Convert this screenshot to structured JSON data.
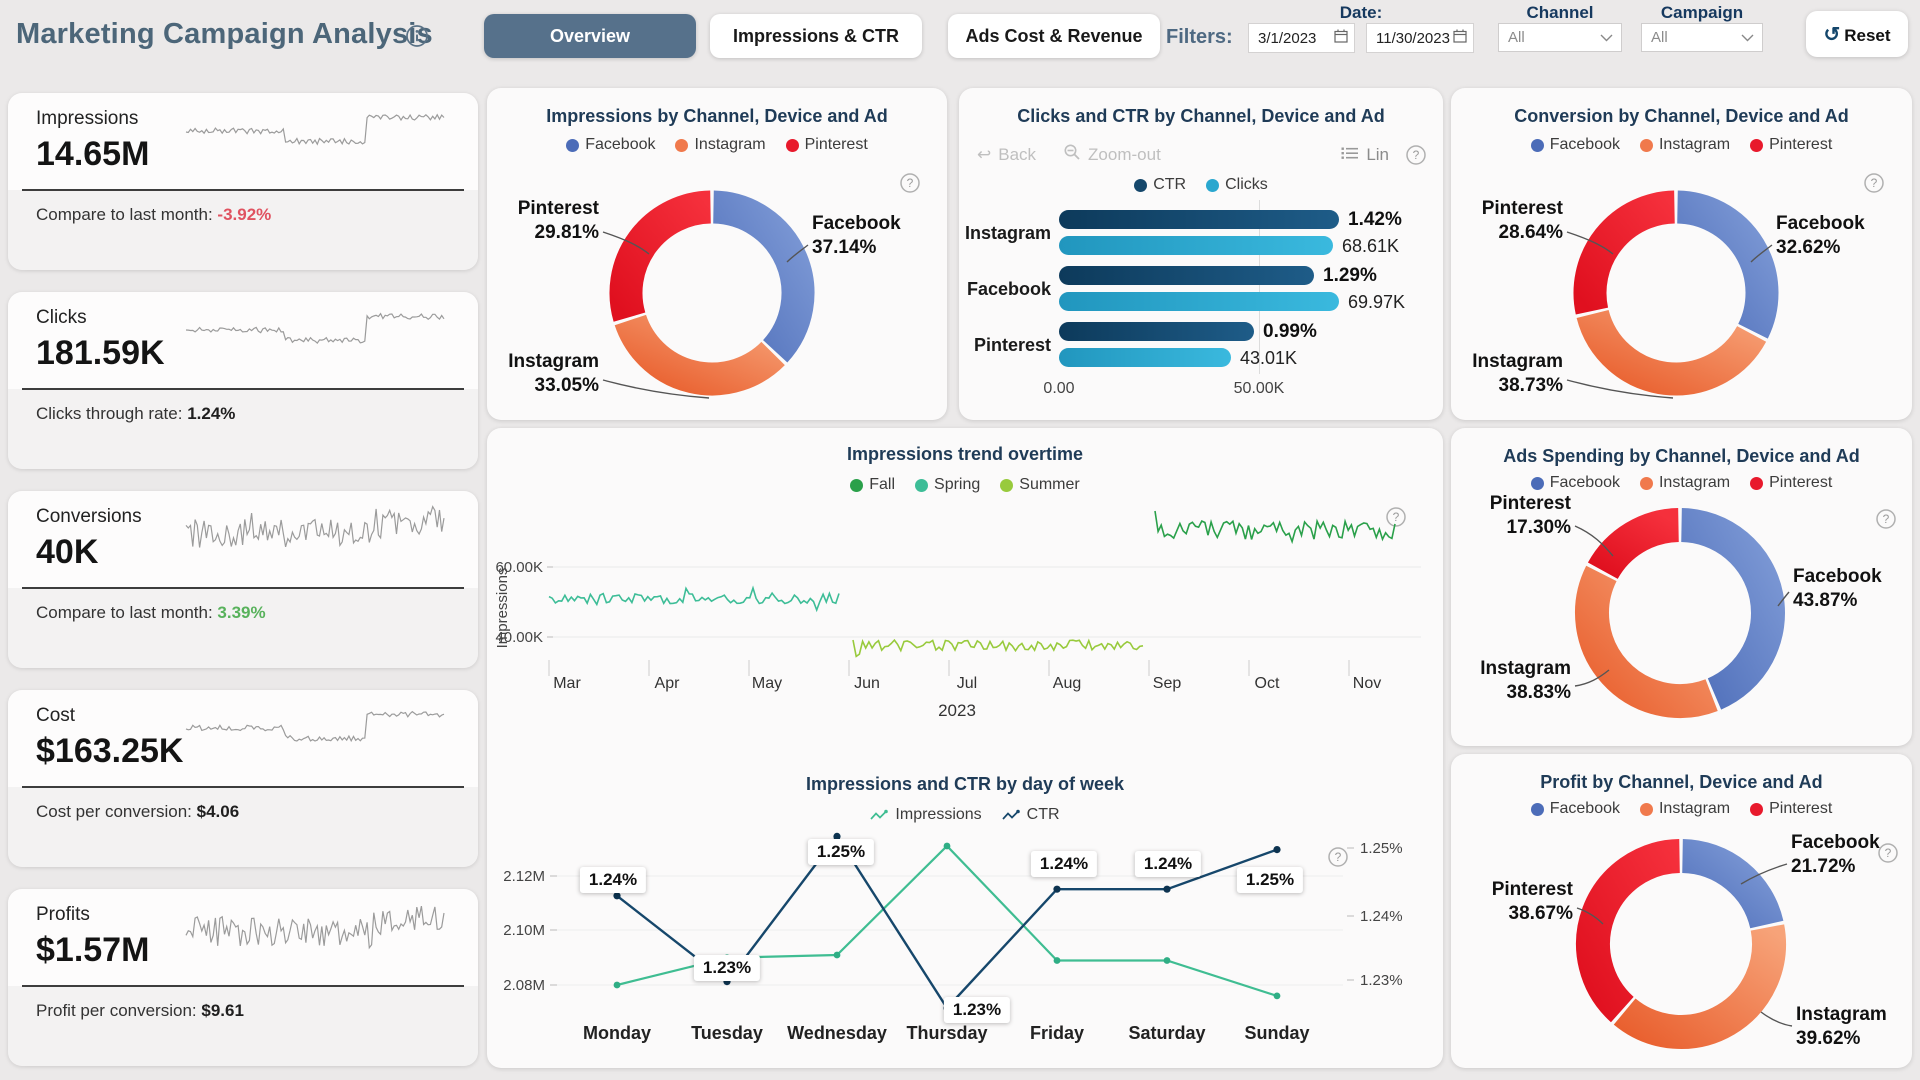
{
  "header": {
    "title": "Marketing Campaign Analysis",
    "tabs": [
      {
        "label": "Overview",
        "active": true
      },
      {
        "label": "Impressions & CTR",
        "active": false
      },
      {
        "label": "Ads Cost & Revenue",
        "active": false
      }
    ],
    "filters_label": "Filters:",
    "date": {
      "label": "Date:",
      "from": "3/1/2023",
      "to": "11/30/2023"
    },
    "channel": {
      "label": "Channel",
      "value": "All"
    },
    "campaign": {
      "label": "Campaign",
      "value": "All"
    },
    "reset_label": "Reset"
  },
  "colors": {
    "page_bg": "#ebe9e9",
    "card_bg": "#fbfafa",
    "tab_active_bg": "#56718b",
    "title_slate": "#4c6679",
    "label_navy": "#16395f",
    "positive": "#58b25c",
    "negative": "#e05260",
    "facebook": "#4c6cb8",
    "instagram": "#f0794c",
    "pinterest": "#e8192c",
    "ctr_navy": "#15476b",
    "clicks_cyan": "#2aa7cf"
  },
  "kpis": [
    {
      "title": "Impressions",
      "value": "14.65M",
      "subtitle": "Compare to last month: ",
      "sub_value": "-3.92%",
      "sub_color": "#e05260",
      "spark": {
        "type": "step",
        "seed": 5
      }
    },
    {
      "title": "Clicks",
      "value": "181.59K",
      "subtitle": "Clicks through rate: ",
      "sub_value": "1.24%",
      "sub_color": "#1f1f1f",
      "spark": {
        "type": "step",
        "seed": 11
      }
    },
    {
      "title": "Conversions",
      "value": "40K",
      "subtitle": "Compare to last month: ",
      "sub_value": "3.39%",
      "sub_color": "#58b25c",
      "spark": {
        "type": "noise",
        "seed": 23
      }
    },
    {
      "title": "Cost",
      "value": "$163.25K",
      "subtitle": "Cost per conversion: ",
      "sub_value": "$4.06",
      "sub_color": "#1f1f1f",
      "spark": {
        "type": "step",
        "seed": 31
      }
    },
    {
      "title": "Profits",
      "value": "$1.57M",
      "subtitle": "Profit per conversion: ",
      "sub_value": "$9.61",
      "sub_color": "#1f1f1f",
      "spark": {
        "type": "noise",
        "seed": 47
      }
    }
  ],
  "chart_data": [
    {
      "id": "impressions_by_channel",
      "type": "pie",
      "title": "Impressions by Channel, Device and Ad",
      "segments": [
        {
          "label": "Facebook",
          "value": 37.14,
          "display": "37.14%",
          "color": "#4c6cb8",
          "color2": "#7e9ad6"
        },
        {
          "label": "Instagram",
          "value": 33.05,
          "display": "33.05%",
          "color": "#e9602f",
          "color2": "#f7a379"
        },
        {
          "label": "Pinterest",
          "value": 29.81,
          "display": "29.81%",
          "color": "#e0101f",
          "color2": "#f5303c"
        }
      ]
    },
    {
      "id": "clicks_ctr_by_channel",
      "type": "bar",
      "title": "Clicks and CTR by Channel, Device and Ad",
      "toolbar": {
        "back": "Back",
        "zoom_out": "Zoom-out",
        "lin": "Lin"
      },
      "categories": [
        "Instagram",
        "Facebook",
        "Pinterest"
      ],
      "series": [
        {
          "name": "CTR",
          "color": "#15476b",
          "values": [
            1.42,
            1.29,
            0.99
          ],
          "labels": [
            "1.42%",
            "1.29%",
            "0.99%"
          ],
          "axis_max": 1.52
        },
        {
          "name": "Clicks",
          "color": "#2aa7cf",
          "values": [
            68.61,
            69.97,
            43.01
          ],
          "labels": [
            "68.61K",
            "69.97K",
            "43.01K"
          ],
          "axis_max": 75
        }
      ],
      "x_ticks": [
        "0.00",
        "50.00K"
      ]
    },
    {
      "id": "conversion_by_channel",
      "type": "pie",
      "title": "Conversion by Channel, Device and Ad",
      "segments": [
        {
          "label": "Facebook",
          "value": 32.62,
          "display": "32.62%",
          "color": "#4c6cb8",
          "color2": "#7e9ad6"
        },
        {
          "label": "Instagram",
          "value": 38.73,
          "display": "38.73%",
          "color": "#e9602f",
          "color2": "#f7a379"
        },
        {
          "label": "Pinterest",
          "value": 28.64,
          "display": "28.64%",
          "color": "#e0101f",
          "color2": "#f5303c"
        }
      ]
    },
    {
      "id": "impressions_trend",
      "type": "line",
      "title": "Impressions trend overtime",
      "ylabel": "Impressions",
      "y_ticks": [
        "60.00K",
        "40.00K"
      ],
      "x_ticks": [
        "Mar",
        "Apr",
        "May",
        "Jun",
        "Jul",
        "Aug",
        "Sep",
        "Oct",
        "Nov"
      ],
      "x_year": "2023",
      "unit": "K",
      "series": [
        {
          "name": "Fall",
          "color": "#2aa04a",
          "months": [
            "Sep",
            "Oct",
            "Nov"
          ],
          "approx_mean": 70.5,
          "approx_range": [
            64,
            76
          ]
        },
        {
          "name": "Spring",
          "color": "#3dbd97",
          "months": [
            "Mar",
            "Apr",
            "May"
          ],
          "approx_mean": 51,
          "approx_range": [
            47,
            54
          ]
        },
        {
          "name": "Summer",
          "color": "#98ca3c",
          "months": [
            "Jun",
            "Jul",
            "Aug"
          ],
          "approx_mean": 37.6,
          "approx_range": [
            34,
            41
          ]
        }
      ]
    },
    {
      "id": "impressions_ctr_dow",
      "type": "line",
      "title": "Impressions and CTR by day of week",
      "categories": [
        "Monday",
        "Tuesday",
        "Wednesday",
        "Thursday",
        "Friday",
        "Saturday",
        "Sunday"
      ],
      "y_left_ticks": [
        "2.12M",
        "2.10M",
        "2.08M"
      ],
      "y_right_ticks": [
        "1.25%",
        "1.24%",
        "1.23%"
      ],
      "series": [
        {
          "name": "Impressions",
          "color": "#3fbd92",
          "unit": "M",
          "values": [
            2.08,
            2.09,
            2.091,
            2.131,
            2.089,
            2.089,
            2.076
          ]
        },
        {
          "name": "CTR",
          "color": "#16476b",
          "unit": "%",
          "values": [
            1.242,
            1.229,
            1.251,
            1.225,
            1.243,
            1.243,
            1.249
          ],
          "labels": [
            "1.24%",
            "1.23%",
            "1.25%",
            "1.23%",
            "1.24%",
            "1.24%",
            "1.25%"
          ]
        }
      ]
    },
    {
      "id": "ads_spending",
      "type": "pie",
      "title": "Ads Spending by Channel, Device and Ad",
      "segments": [
        {
          "label": "Facebook",
          "value": 43.87,
          "display": "43.87%",
          "color": "#4c6cb8",
          "color2": "#7e9ad6"
        },
        {
          "label": "Instagram",
          "value": 38.83,
          "display": "38.83%",
          "color": "#e9602f",
          "color2": "#f7a379"
        },
        {
          "label": "Pinterest",
          "value": 17.3,
          "display": "17.30%",
          "color": "#e0101f",
          "color2": "#f5303c"
        }
      ]
    },
    {
      "id": "profit",
      "type": "pie",
      "title": "Profit by Channel, Device and Ad",
      "segments": [
        {
          "label": "Facebook",
          "value": 21.72,
          "display": "21.72%",
          "color": "#4c6cb8",
          "color2": "#7e9ad6"
        },
        {
          "label": "Instagram",
          "value": 39.62,
          "display": "39.62%",
          "color": "#e9602f",
          "color2": "#f7a379"
        },
        {
          "label": "Pinterest",
          "value": 38.67,
          "display": "38.67%",
          "color": "#e0101f",
          "color2": "#f5303c"
        }
      ]
    }
  ]
}
